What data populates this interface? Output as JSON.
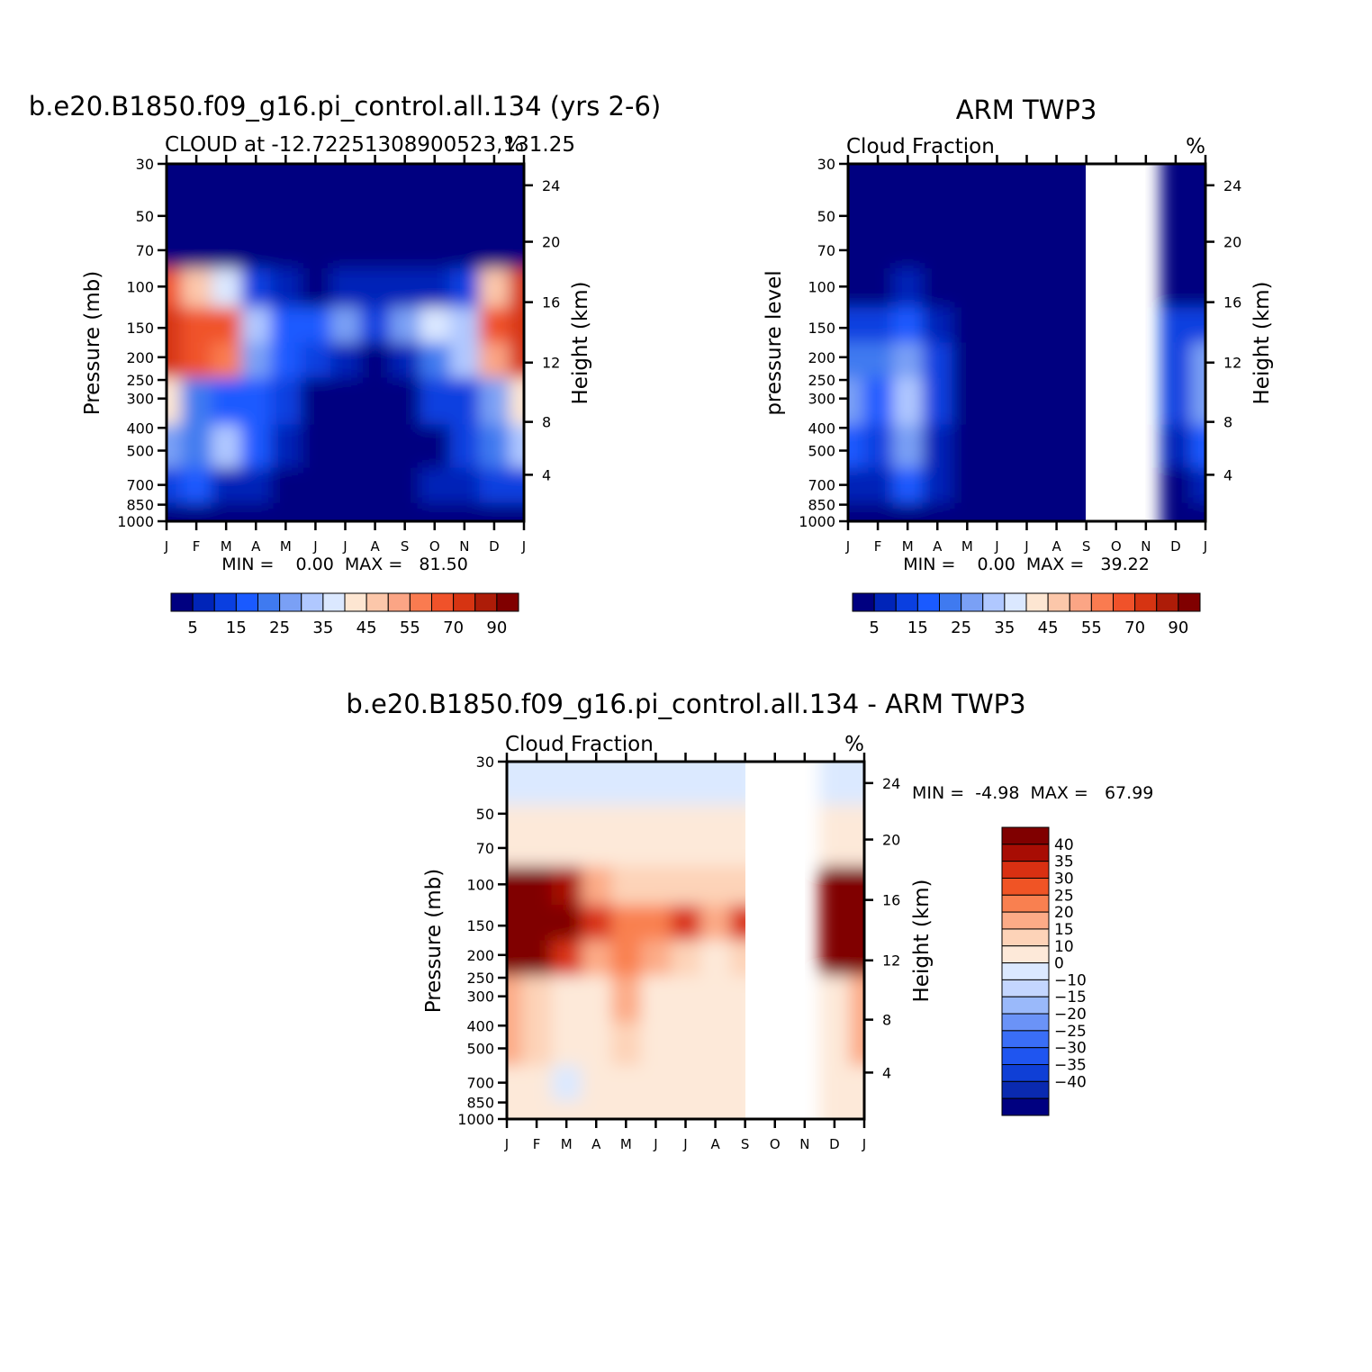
{
  "palettes": {
    "cloud_colors": [
      "#000080",
      "#0024b8",
      "#0a3fe0",
      "#1a5aff",
      "#3f7af0",
      "#7aa0f5",
      "#b0c8ff",
      "#dbe8ff",
      "#fde6d2",
      "#fcc7aa",
      "#fba585",
      "#fa7b50",
      "#f0522a",
      "#d63412",
      "#ad1c08",
      "#800000"
    ],
    "cloud_labels": [
      "5",
      "15",
      "25",
      "35",
      "45",
      "55",
      "70",
      "90"
    ],
    "diff_colors": [
      "#000080",
      "#0a2ab0",
      "#0f3fd6",
      "#1f55f0",
      "#3a6ef7",
      "#6b93f7",
      "#9ab9fa",
      "#c4d6ff",
      "#dbe9ff",
      "#fde9d9",
      "#fdd3b8",
      "#fcab87",
      "#f98050",
      "#f05425",
      "#d93012",
      "#a80d04",
      "#800000"
    ],
    "diff_labels": [
      "40",
      "35",
      "30",
      "25",
      "20",
      "15",
      "10",
      "0",
      "-10",
      "-15",
      "-20",
      "-25",
      "-30",
      "-35",
      "-40"
    ]
  },
  "axes": {
    "months": [
      "J",
      "F",
      "M",
      "A",
      "M",
      "J",
      "J",
      "A",
      "S",
      "O",
      "N",
      "D",
      "J"
    ],
    "pressure_ticks": [
      "30",
      "50",
      "70",
      "100",
      "150",
      "200",
      "250",
      "300",
      "400",
      "500",
      "700",
      "850",
      "1000"
    ],
    "height_ticks": [
      "24",
      "20",
      "16",
      "12",
      "8",
      "4"
    ]
  },
  "panel1": {
    "title": "b.e20.B1850.f09_g16.pi_control.all.134 (yrs 2-6)",
    "subtitle": "CLOUD at -12.72251308900523,131.25",
    "units": "%",
    "ylabel": "Pressure (mb)",
    "ylabel_right": "Height (km)",
    "minmax": "MIN =    0.00  MAX =   81.50"
  },
  "panel2": {
    "title": "ARM TWP3",
    "subtitle": "Cloud Fraction",
    "units": "%",
    "ylabel": "pressure level",
    "ylabel_right": "Height (km)",
    "minmax": "MIN =    0.00  MAX =   39.22"
  },
  "panel3": {
    "title": "b.e20.B1850.f09_g16.pi_control.all.134 - ARM TWP3",
    "subtitle": "Cloud Fraction",
    "units": "%",
    "ylabel": "Pressure (mb)",
    "ylabel_right": "Height (km)",
    "minmax": "MIN =  -4.98  MAX =   67.99"
  },
  "chart_data": [
    {
      "type": "heatmap",
      "title": "b.e20.B1850.f09_g16.pi_control.all.134 (yrs 2-6)",
      "subtitle": "CLOUD at -12.72251308900523,131.25",
      "xlabel": "",
      "ylabel": "Pressure (mb)",
      "x": [
        "J",
        "F",
        "M",
        "A",
        "M",
        "J",
        "J",
        "A",
        "S",
        "O",
        "N",
        "D",
        "J"
      ],
      "y": [
        30,
        70,
        100,
        150,
        200,
        300,
        500,
        700,
        1000
      ],
      "z": [
        [
          0,
          0,
          0,
          0,
          0,
          0,
          0,
          0,
          0,
          0,
          0,
          0,
          0
        ],
        [
          2,
          0,
          0,
          0,
          0,
          0,
          0,
          0,
          0,
          0,
          0,
          0,
          3
        ],
        [
          60,
          45,
          35,
          10,
          7,
          4,
          6,
          6,
          6,
          9,
          14,
          45,
          70
        ],
        [
          72,
          68,
          65,
          33,
          15,
          15,
          28,
          10,
          25,
          36,
          30,
          60,
          75
        ],
        [
          75,
          68,
          55,
          28,
          16,
          10,
          8,
          0,
          8,
          22,
          30,
          52,
          75
        ],
        [
          40,
          24,
          18,
          18,
          10,
          0,
          0,
          0,
          0,
          10,
          14,
          28,
          44
        ],
        [
          28,
          24,
          30,
          18,
          9,
          4,
          0,
          0,
          0,
          4,
          13,
          24,
          30
        ],
        [
          10,
          16,
          9,
          7,
          0,
          0,
          0,
          0,
          0,
          5,
          7,
          12,
          14
        ],
        [
          0,
          0,
          0,
          0,
          0,
          0,
          0,
          0,
          0,
          0,
          0,
          0,
          0
        ]
      ],
      "colorbar": [
        "5",
        "15",
        "25",
        "35",
        "45",
        "55",
        "70",
        "90"
      ],
      "min": 0.0,
      "max": 81.5
    },
    {
      "type": "heatmap",
      "title": "ARM TWP3",
      "subtitle": "Cloud Fraction",
      "xlabel": "",
      "ylabel": "pressure level",
      "x": [
        "J",
        "F",
        "M",
        "A",
        "M",
        "J",
        "J",
        "A",
        "S",
        "O",
        "N",
        "D",
        "J"
      ],
      "y": [
        30,
        70,
        100,
        150,
        200,
        300,
        500,
        700,
        1000
      ],
      "z": [
        [
          0,
          0,
          0,
          0,
          0,
          0,
          0,
          0,
          0,
          null,
          null,
          0,
          0
        ],
        [
          0,
          0,
          0,
          0,
          0,
          0,
          0,
          0,
          0,
          null,
          null,
          0,
          0
        ],
        [
          1,
          3,
          5,
          1,
          0,
          0,
          0,
          0,
          0,
          null,
          null,
          3,
          4
        ],
        [
          14,
          14,
          16,
          6,
          0,
          0,
          0,
          0,
          0,
          null,
          null,
          10,
          14
        ],
        [
          22,
          20,
          28,
          14,
          0,
          0,
          0,
          0,
          0,
          null,
          null,
          14,
          26
        ],
        [
          26,
          18,
          33,
          12,
          0,
          0,
          0,
          0,
          0,
          null,
          null,
          14,
          28
        ],
        [
          18,
          14,
          26,
          6,
          0,
          0,
          0,
          0,
          0,
          null,
          null,
          8,
          18
        ],
        [
          8,
          6,
          16,
          6,
          0,
          0,
          0,
          0,
          0,
          null,
          null,
          4,
          8
        ],
        [
          0,
          0,
          0,
          0,
          0,
          0,
          0,
          0,
          0,
          null,
          null,
          0,
          0
        ]
      ],
      "colorbar": [
        "5",
        "15",
        "25",
        "35",
        "45",
        "55",
        "70",
        "90"
      ],
      "min": 0.0,
      "max": 39.22
    },
    {
      "type": "heatmap",
      "title": "b.e20.B1850.f09_g16.pi_control.all.134 - ARM TWP3",
      "subtitle": "Cloud Fraction",
      "xlabel": "",
      "ylabel": "Pressure (mb)",
      "x": [
        "J",
        "F",
        "M",
        "A",
        "M",
        "J",
        "J",
        "A",
        "S",
        "O",
        "N",
        "D",
        "J"
      ],
      "y": [
        30,
        70,
        100,
        150,
        200,
        300,
        500,
        700,
        1000
      ],
      "z": [
        [
          -3,
          -3,
          -3,
          -3,
          -3,
          -3,
          -3,
          -3,
          -3,
          null,
          null,
          -3,
          -3
        ],
        [
          4,
          4,
          4,
          4,
          4,
          4,
          4,
          4,
          4,
          null,
          null,
          4,
          4
        ],
        [
          55,
          42,
          30,
          10,
          8,
          5,
          6,
          6,
          6,
          null,
          null,
          40,
          66
        ],
        [
          60,
          54,
          48,
          28,
          15,
          15,
          26,
          10,
          25,
          null,
          null,
          50,
          62
        ],
        [
          52,
          48,
          28,
          14,
          16,
          10,
          8,
          0,
          8,
          null,
          null,
          38,
          50
        ],
        [
          12,
          6,
          4,
          4,
          10,
          2,
          2,
          2,
          2,
          null,
          null,
          4,
          14
        ],
        [
          10,
          6,
          4,
          4,
          9,
          4,
          1,
          1,
          1,
          null,
          null,
          2,
          12
        ],
        [
          2,
          3,
          -3,
          1,
          1,
          1,
          1,
          1,
          1,
          null,
          null,
          1,
          4
        ],
        [
          2,
          2,
          2,
          2,
          2,
          2,
          2,
          2,
          2,
          null,
          null,
          2,
          2
        ]
      ],
      "colorbar": [
        "40",
        "35",
        "30",
        "25",
        "20",
        "15",
        "10",
        "0",
        "-10",
        "-15",
        "-20",
        "-25",
        "-30",
        "-35",
        "-40"
      ],
      "min": -4.98,
      "max": 67.99
    }
  ]
}
